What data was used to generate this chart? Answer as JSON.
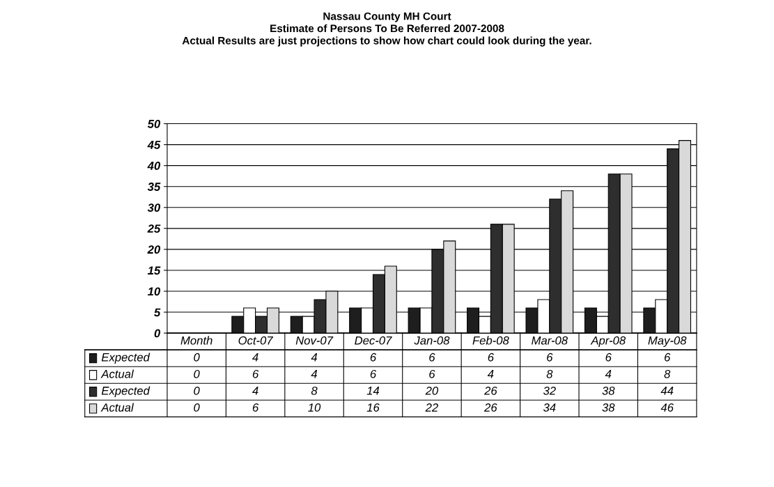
{
  "chart_data": {
    "type": "bar",
    "title": "Nassau County MH Court",
    "subtitle": "Estimate of Persons To Be Referred 2007-2008",
    "annotations": [
      "Actual Results are just projections to show how chart could look during the year."
    ],
    "categories": [
      "Month",
      "Oct-07",
      "Nov-07",
      "Dec-07",
      "Jan-08",
      "Feb-08",
      "Mar-08",
      "Apr-08",
      "May-08"
    ],
    "series": [
      {
        "name": "Expected",
        "color": "#1e1e1e",
        "values": [
          0,
          4,
          4,
          6,
          6,
          6,
          6,
          6,
          6
        ]
      },
      {
        "name": "Actual",
        "color": "#ffffff",
        "values": [
          0,
          6,
          4,
          6,
          6,
          4,
          8,
          4,
          8
        ]
      },
      {
        "name": "Expected",
        "color": "#2e2e2e",
        "values": [
          0,
          4,
          8,
          14,
          20,
          26,
          32,
          38,
          44
        ]
      },
      {
        "name": "Actual",
        "color": "#d9d9d9",
        "values": [
          0,
          6,
          10,
          16,
          22,
          26,
          34,
          38,
          46
        ]
      }
    ],
    "ylim": [
      0,
      50
    ],
    "yticks": [
      0,
      5,
      10,
      15,
      20,
      25,
      30,
      35,
      40,
      45,
      50
    ],
    "grid": "y",
    "data_labels": true,
    "legend": "bottom"
  }
}
